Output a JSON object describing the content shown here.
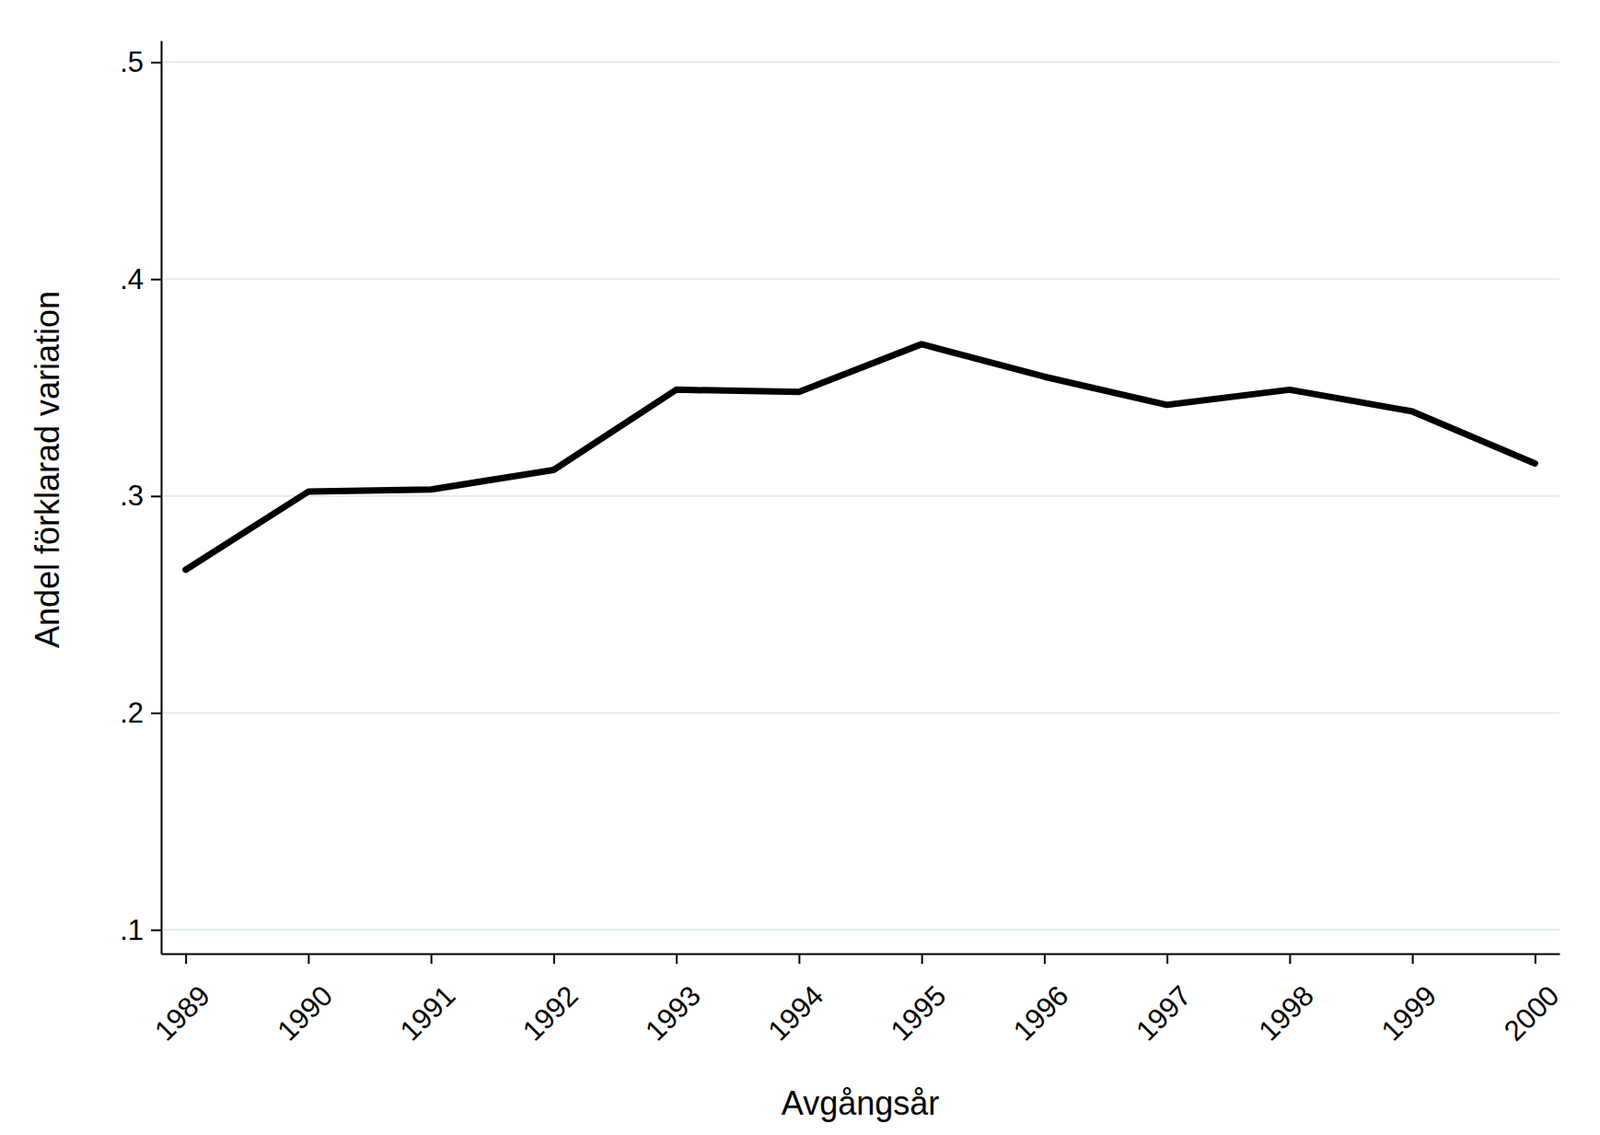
{
  "chart_data": {
    "type": "line",
    "xlabel": "Avgångsår",
    "ylabel": "Andel förklarad variation",
    "x": [
      1989,
      1990,
      1991,
      1992,
      1993,
      1994,
      1995,
      1996,
      1997,
      1998,
      1999,
      2000
    ],
    "values": [
      0.266,
      0.302,
      0.303,
      0.312,
      0.349,
      0.348,
      0.37,
      0.355,
      0.342,
      0.349,
      0.339,
      0.315
    ],
    "color": "#000000",
    "xlim": [
      1988.8,
      2000.2
    ],
    "ylim": [
      0.089,
      0.51
    ],
    "xticks": [
      1989,
      1990,
      1991,
      1992,
      1993,
      1994,
      1995,
      1996,
      1997,
      1998,
      1999,
      2000
    ],
    "yticks": [
      {
        "value": 0.1,
        "label": ".1"
      },
      {
        "value": 0.2,
        "label": ".2"
      },
      {
        "value": 0.3,
        "label": ".3"
      },
      {
        "value": 0.4,
        "label": ".4"
      },
      {
        "value": 0.5,
        "label": ".5"
      }
    ],
    "grid": true
  }
}
